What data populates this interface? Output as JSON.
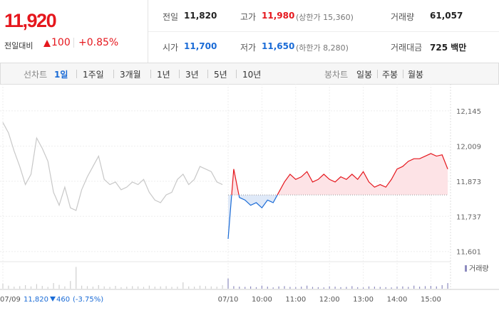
{
  "quote": {
    "price": "11,920",
    "change_label": "전일대비",
    "change": "100",
    "change_pct": "+0.85%"
  },
  "summary": {
    "rows": [
      [
        {
          "label": "전일",
          "value": "11,820"
        },
        {
          "label": "고가",
          "value": "11,980",
          "note": "(상한가 15,360)"
        },
        {
          "label": "거래량",
          "value": "61,057"
        }
      ],
      [
        {
          "label": "시가",
          "value": "11,700"
        },
        {
          "label": "저가",
          "value": "11,650",
          "note": "(하한가 8,280)"
        },
        {
          "label": "거래대금",
          "value": "725 백만"
        }
      ]
    ]
  },
  "tabs": {
    "line_label": "선차트",
    "periods": [
      "1일",
      "1주일",
      "3개월",
      "1년",
      "3년",
      "5년",
      "10년"
    ],
    "candle_label": "봉차트",
    "candles": [
      "일봉",
      "주봉",
      "월봉"
    ]
  },
  "chart_data": {
    "type": "line",
    "categories": [
      "07/09",
      null,
      null,
      null,
      null,
      null,
      null,
      null,
      null,
      null,
      null,
      null,
      null,
      null,
      null,
      null,
      null,
      null,
      null,
      null,
      null,
      null,
      null,
      null,
      null,
      null,
      null,
      null,
      null,
      null,
      null,
      null,
      null,
      null,
      null,
      null,
      null,
      null,
      null,
      null,
      "07/10",
      null,
      null,
      null,
      null,
      null,
      "10:00",
      null,
      null,
      null,
      null,
      null,
      "11:00",
      null,
      null,
      null,
      null,
      null,
      "12:00",
      null,
      null,
      null,
      null,
      null,
      "13:00",
      null,
      null,
      null,
      null,
      null,
      "14:00",
      null,
      null,
      null,
      null,
      null,
      "15:00",
      null,
      null,
      null
    ],
    "prev_day_info": {
      "close": "11,820",
      "change": "460",
      "change_pct": "(-3.75%)"
    },
    "baseline": 11820,
    "ylim": [
      11570,
      12230
    ],
    "yticks": [
      {
        "value": 12145,
        "label": "12,145"
      },
      {
        "value": 12009,
        "label": "12,009"
      },
      {
        "value": 11873,
        "label": "11,873"
      },
      {
        "value": 11737,
        "label": "11,737"
      },
      {
        "value": 11601,
        "label": "11,601"
      }
    ],
    "grid": true,
    "series": [
      {
        "color": "#c8c8c8",
        "values": [
          12100,
          12060,
          11990,
          11930,
          11860,
          11900,
          12040,
          12000,
          11950,
          11830,
          11780,
          11850,
          11770,
          11760,
          11840,
          11890,
          11930,
          11970,
          11880,
          11860,
          11870,
          11840,
          11850,
          11870,
          11860,
          11880,
          11830,
          11800,
          11790,
          11820,
          11830,
          11880,
          11900,
          11860,
          11880,
          11930,
          11920,
          11910,
          11870,
          11860,
          null,
          null,
          null,
          null,
          null,
          null,
          null,
          null,
          null,
          null,
          null,
          null,
          null,
          null,
          null,
          null,
          null,
          null,
          null,
          null,
          null,
          null,
          null,
          null,
          null,
          null,
          null,
          null,
          null,
          null,
          null,
          null,
          null,
          null,
          null,
          null,
          null,
          null,
          null,
          null
        ]
      },
      {
        "up_color": "#e5171d",
        "down_color": "#1a6bd6",
        "values": [
          null,
          null,
          null,
          null,
          null,
          null,
          null,
          null,
          null,
          null,
          null,
          null,
          null,
          null,
          null,
          null,
          null,
          null,
          null,
          null,
          null,
          null,
          null,
          null,
          null,
          null,
          null,
          null,
          null,
          null,
          null,
          null,
          null,
          null,
          null,
          null,
          null,
          null,
          null,
          null,
          11650,
          11920,
          11810,
          11800,
          11780,
          11790,
          11770,
          11800,
          11790,
          11830,
          11870,
          11900,
          11880,
          11890,
          11910,
          11870,
          11880,
          11900,
          11880,
          11870,
          11890,
          11880,
          11900,
          11880,
          11910,
          11870,
          11850,
          11860,
          11850,
          11880,
          11920,
          11930,
          11950,
          11960,
          11960,
          11970,
          11980,
          11970,
          11975,
          11920
        ]
      }
    ],
    "volume": {
      "name": "거래량",
      "color": "#8d8bbf",
      "ylim": [
        0,
        100
      ],
      "values": [
        20,
        12,
        8,
        10,
        14,
        9,
        18,
        11,
        7,
        22,
        15,
        9,
        30,
        85,
        12,
        10,
        8,
        14,
        9,
        7,
        11,
        6,
        8,
        10,
        9,
        7,
        12,
        8,
        9,
        10,
        7,
        8,
        25,
        9,
        8,
        12,
        10,
        9,
        8,
        14,
        40,
        10,
        8,
        7,
        9,
        6,
        12,
        8,
        5,
        9,
        10,
        7,
        6,
        8,
        12,
        7,
        6,
        5,
        9,
        8,
        6,
        7,
        10,
        6,
        5,
        9,
        8,
        7,
        6,
        5,
        8,
        9,
        7,
        12,
        8,
        10,
        11,
        9,
        14,
        22
      ]
    }
  }
}
